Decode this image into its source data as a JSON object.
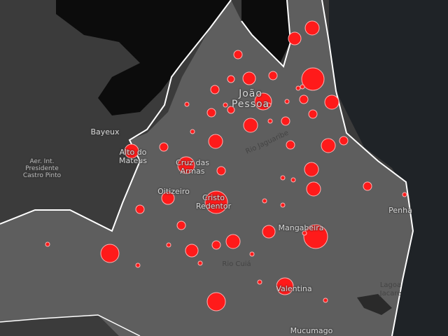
{
  "map": {
    "colors": {
      "sea": "#1f2327",
      "outer_land": "#3b3b3b",
      "city_area": "#5e5e5e",
      "water": "#0c0c0c",
      "boundary": "#ffffff",
      "marker": "#ff1a1a"
    },
    "labels": {
      "joao_pessoa": "João\nPessoa",
      "bayeux": "Bayeux",
      "alto_do_mateus": "Alto do\nMateus",
      "cruz_das_armas": "Cruz das\nArmas",
      "oitizeiro": "Oitizeiro",
      "cristo_redentor": "Cristo\nRedentor",
      "mangabeira": "Mangabeira",
      "penha": "Penha",
      "valentina": "Valentina",
      "mucumago": "Mucumago",
      "airport": "Aer. Int.\nPresidente\nCastro Pinto",
      "rio_jaguaribe": "Rio Jaguaribe",
      "rio_cuia": "Rio Cuiá",
      "lagoa": "Lagoa\nJacaré"
    }
  }
}
